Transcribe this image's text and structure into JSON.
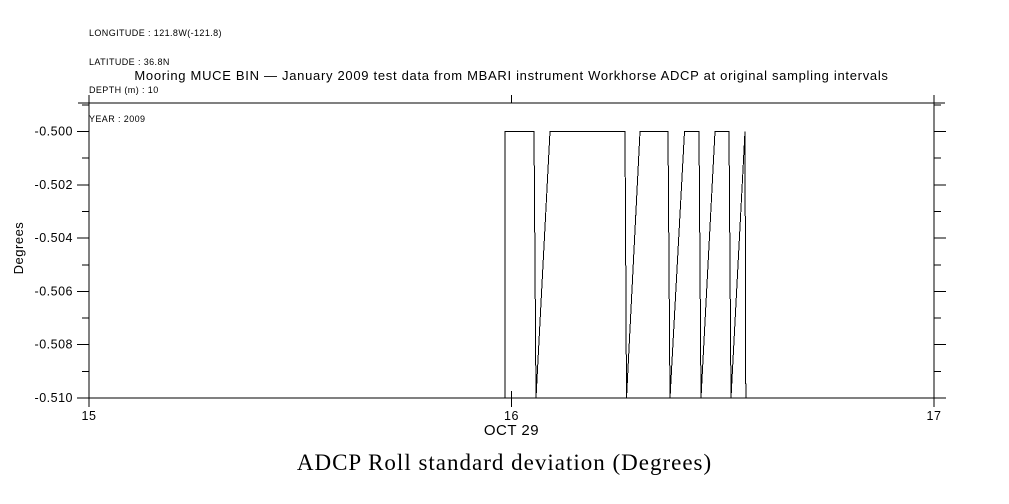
{
  "page": {
    "background": "#ffffff",
    "text_color": "#000000"
  },
  "info_block": {
    "lines": [
      "LONGITUDE : 121.8W(-121.8)",
      "LATITUDE : 36.8N",
      "DEPTH (m) : 10",
      "YEAR : 2009"
    ]
  },
  "chart_data": {
    "type": "line",
    "title": "Mooring MUCE BIN — January 2009 test data from MBARI instrument Workhorse ADCP at original sampling intervals",
    "caption": "ADCP Roll standard deviation (Degrees)",
    "ylabel": "Degrees",
    "x_date_label": "OCT 29",
    "xlim": [
      15,
      17
    ],
    "ylim": [
      -0.51,
      -0.49893
    ],
    "grid": false,
    "legend": false,
    "line_color": "#000000",
    "x_ticks": [
      {
        "value": 15,
        "label": "15"
      },
      {
        "value": 16,
        "label": "16"
      },
      {
        "value": 17,
        "label": "17"
      }
    ],
    "y_ticks_major": [
      {
        "value": -0.5,
        "label": "-0.500"
      },
      {
        "value": -0.502,
        "label": "-0.502"
      },
      {
        "value": -0.504,
        "label": "-0.504"
      },
      {
        "value": -0.506,
        "label": "-0.506"
      },
      {
        "value": -0.508,
        "label": "-0.508"
      },
      {
        "value": -0.51,
        "label": "-0.510"
      }
    ],
    "y_ticks_minor": [
      -0.499,
      -0.501,
      -0.503,
      -0.505,
      -0.507,
      -0.509
    ],
    "series": [
      {
        "name": "ADCP Roll standard deviation",
        "points": [
          [
            15.0,
            -0.51
          ],
          [
            15.9846,
            -0.51
          ],
          [
            15.9846,
            -0.5
          ],
          [
            16.0533,
            -0.5
          ],
          [
            16.058,
            -0.51
          ],
          [
            16.0911,
            -0.5
          ],
          [
            16.2686,
            -0.5
          ],
          [
            16.2722,
            -0.51
          ],
          [
            16.3041,
            -0.5
          ],
          [
            16.3704,
            -0.5
          ],
          [
            16.3751,
            -0.51
          ],
          [
            16.4095,
            -0.5
          ],
          [
            16.4438,
            -0.5
          ],
          [
            16.4485,
            -0.51
          ],
          [
            16.4817,
            -0.5
          ],
          [
            16.5148,
            -0.5
          ],
          [
            16.5195,
            -0.51
          ],
          [
            16.5527,
            -0.5
          ],
          [
            16.5546,
            -0.51
          ],
          [
            17.0,
            -0.51
          ]
        ]
      }
    ]
  }
}
